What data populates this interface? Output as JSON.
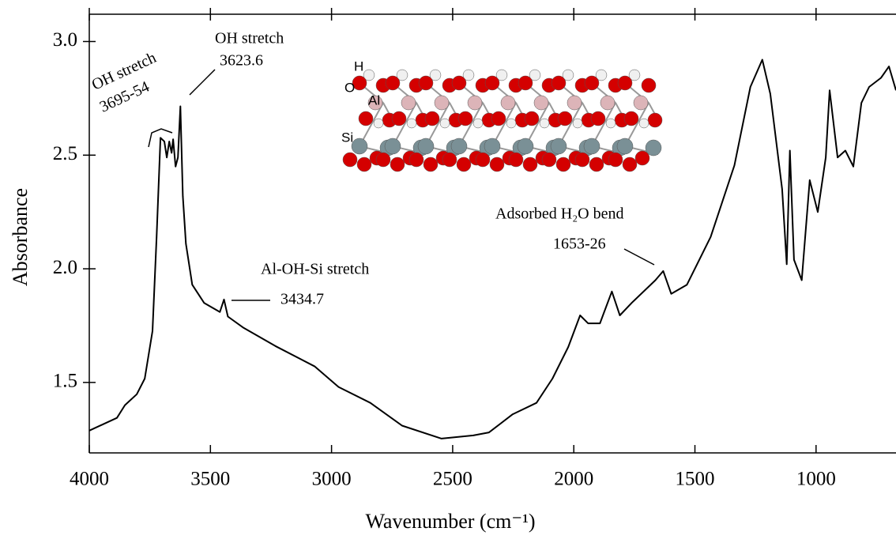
{
  "chart_data": {
    "type": "line",
    "xlabel": "Wavenumber (cm⁻¹)",
    "ylabel": "Absorbance",
    "color": "#000000",
    "xlim": [
      4000,
      670
    ],
    "xticks": [
      4000,
      3500,
      3000,
      2500,
      2000,
      1500,
      1000
    ],
    "ylim": [
      1.19,
      3.12
    ],
    "yticks": [
      1.5,
      {
        "value": 2,
        "label": "2.0"
      },
      2.5,
      {
        "value": 3,
        "label": "3.0"
      }
    ],
    "x": [
      4000,
      3886,
      3853,
      3804,
      3771,
      3739,
      3722,
      3706,
      3690,
      3680,
      3670,
      3660,
      3654,
      3644,
      3634,
      3624,
      3614,
      3601,
      3575,
      3526,
      3461,
      3444,
      3428,
      3363,
      3232,
      3069,
      2971,
      2840,
      2709,
      2546,
      2415,
      2350,
      2252,
      2154,
      2088,
      2023,
      1974,
      1941,
      1892,
      1843,
      1810,
      1761,
      1663,
      1631,
      1598,
      1533,
      1435,
      1337,
      1271,
      1222,
      1189,
      1140,
      1121,
      1108,
      1091,
      1059,
      1026,
      993,
      960,
      944,
      911,
      879,
      846,
      813,
      781,
      732,
      699,
      670
    ],
    "values": [
      1.288,
      1.344,
      1.4,
      1.448,
      1.517,
      1.726,
      2.14,
      2.576,
      2.56,
      2.49,
      2.56,
      2.51,
      2.57,
      2.45,
      2.49,
      2.715,
      2.32,
      2.11,
      1.93,
      1.85,
      1.81,
      1.865,
      1.79,
      1.74,
      1.66,
      1.57,
      1.48,
      1.41,
      1.31,
      1.253,
      1.267,
      1.28,
      1.36,
      1.41,
      1.517,
      1.656,
      1.795,
      1.76,
      1.76,
      1.9,
      1.795,
      1.85,
      1.95,
      1.99,
      1.89,
      1.93,
      2.14,
      2.455,
      2.8,
      2.92,
      2.77,
      2.35,
      2.02,
      2.52,
      2.04,
      1.95,
      2.39,
      2.25,
      2.49,
      2.785,
      2.49,
      2.52,
      2.45,
      2.73,
      2.8,
      2.84,
      2.89,
      2.785
    ],
    "annotations": [
      "OH stretch",
      "3695-54",
      "OH stretch",
      "3623.6",
      "Al-OH-Si stretch",
      "3434.7",
      "Adsorbed H₂O bend",
      "1653-26"
    ],
    "inset_labels": [
      "H",
      "O",
      "Al",
      "Si"
    ]
  }
}
